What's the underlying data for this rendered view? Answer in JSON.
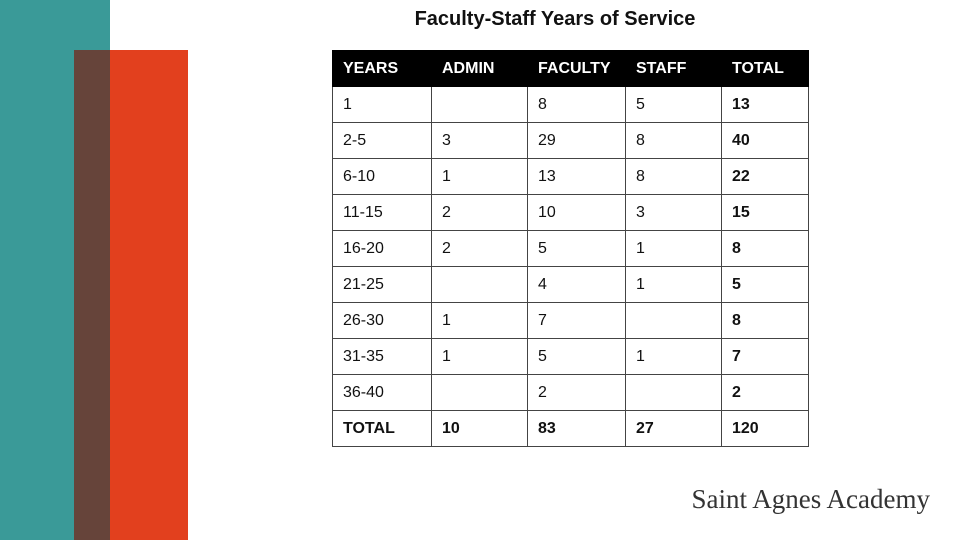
{
  "title": "Faculty-Staff Years of Service",
  "colors": {
    "teal": "#3a9a98",
    "brown": "#66443a",
    "red": "#e2401e",
    "header_bg": "#000000"
  },
  "table": {
    "headers": [
      "YEARS",
      "ADMIN",
      "FACULTY",
      "STAFF",
      "TOTAL"
    ],
    "rows": [
      [
        "1",
        "",
        "8",
        "5",
        "13"
      ],
      [
        "2-5",
        "3",
        "29",
        "8",
        "40"
      ],
      [
        "6-10",
        "1",
        "13",
        "8",
        "22"
      ],
      [
        "11-15",
        "2",
        "10",
        "3",
        "15"
      ],
      [
        "16-20",
        "2",
        "5",
        "1",
        "8"
      ],
      [
        "21-25",
        "",
        "4",
        "1",
        "5"
      ],
      [
        "26-30",
        "1",
        "7",
        "",
        "8"
      ],
      [
        "31-35",
        "1",
        "5",
        "1",
        "7"
      ],
      [
        "36-40",
        "",
        "2",
        "",
        "2"
      ]
    ],
    "total_row": [
      "TOTAL",
      "10",
      "83",
      "27",
      "120"
    ]
  },
  "logo_text": "Saint Agnes Academy"
}
